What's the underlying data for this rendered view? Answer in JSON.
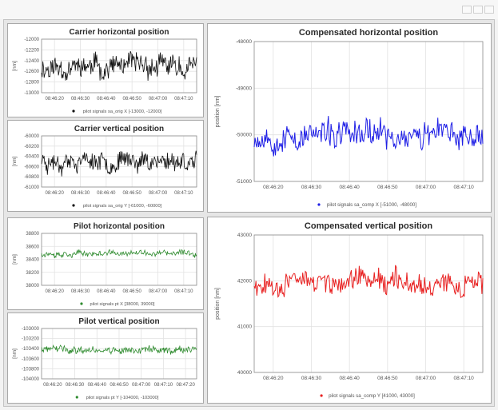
{
  "window": {
    "controls": [
      "minimize-icon",
      "maximize-icon",
      "close-icon"
    ]
  },
  "chart_data": [
    {
      "id": "carrier-horizontal",
      "type": "line",
      "title": "Carrier horizontal position",
      "ylabel": "[nm]",
      "yticks": [
        -12000,
        -12200,
        -12400,
        -12600,
        -12800,
        -13000
      ],
      "ylim": [
        -13000,
        -12000
      ],
      "xtick_labels": [
        "08:46:20",
        "08:46:30",
        "08:46:40",
        "08:46:50",
        "08:47:00",
        "08:47:10"
      ],
      "xlim": [
        0,
        60
      ],
      "series": [
        {
          "name": "pilot signals sa_orig X [-13000, -12000]",
          "color": "#111111",
          "mean": -12520,
          "amplitude": 420,
          "n": 240,
          "seed": 11
        }
      ],
      "legend": "bottom"
    },
    {
      "id": "carrier-vertical",
      "type": "line",
      "title": "Carrier vertical position",
      "ylabel": "[nm]",
      "yticks": [
        -60000,
        -60200,
        -60400,
        -60600,
        -60800,
        -61000
      ],
      "ylim": [
        -61000,
        -60000
      ],
      "xtick_labels": [
        "08:46:20",
        "08:46:30",
        "08:46:40",
        "08:46:50",
        "08:47:00",
        "08:47:10"
      ],
      "xlim": [
        0,
        60
      ],
      "series": [
        {
          "name": "pilot signals sa_orig Y [-61000, -60000]",
          "color": "#111111",
          "mean": -60480,
          "amplitude": 380,
          "n": 240,
          "seed": 23
        }
      ],
      "legend": "bottom"
    },
    {
      "id": "pilot-horizontal",
      "type": "line",
      "title": "Pilot horizontal position",
      "ylabel": "[nm]",
      "yticks": [
        38800,
        38600,
        38400,
        38200,
        38000
      ],
      "ylim": [
        38000,
        38800
      ],
      "xtick_labels": [
        "08:46:20",
        "08:46:30",
        "08:46:40",
        "08:46:50",
        "08:47:00",
        "08:47:10"
      ],
      "xlim": [
        0,
        60
      ],
      "series": [
        {
          "name": "pilot signals pt X [38000, 39000]",
          "color": "#2e8b2e",
          "mean": 38490,
          "amplitude": 90,
          "n": 240,
          "seed": 37
        }
      ],
      "legend": "bottom"
    },
    {
      "id": "pilot-vertical",
      "type": "line",
      "title": "Pilot vertical position",
      "ylabel": "[nm]",
      "yticks": [
        -103000,
        -103200,
        -103400,
        -103600,
        -103800,
        -104000
      ],
      "ylim": [
        -104000,
        -103000
      ],
      "xtick_labels": [
        "08:46:20",
        "08:46:30",
        "08:46:40",
        "08:46:50",
        "08:47:00",
        "08:47:10",
        "08:47:20"
      ],
      "xlim": [
        0,
        70
      ],
      "series": [
        {
          "name": "pilot signals pt Y [-104000, -103000]",
          "color": "#2e8b2e",
          "mean": -103420,
          "amplitude": 150,
          "n": 240,
          "seed": 41
        }
      ],
      "legend": "bottom"
    },
    {
      "id": "compensated-horizontal",
      "type": "line",
      "title": "Compensated horizontal position",
      "ylabel": "position [nm]",
      "yticks": [
        -48000,
        -49000,
        -50000,
        -51000
      ],
      "ylim": [
        -51000,
        -48000
      ],
      "xtick_labels": [
        "08:46:20",
        "08:46:30",
        "08:46:40",
        "08:46:50",
        "08:47:00",
        "08:47:10"
      ],
      "xlim": [
        0,
        60
      ],
      "series": [
        {
          "name": "pilot signals sa_comp X [-51000, -48000]",
          "color": "#1f1fe6",
          "mean": -50020,
          "amplitude": 600,
          "n": 260,
          "seed": 53
        }
      ],
      "legend": "bottom"
    },
    {
      "id": "compensated-vertical",
      "type": "line",
      "title": "Compensated vertical position",
      "ylabel": "position [nm]",
      "yticks": [
        43000,
        42000,
        41000,
        40000
      ],
      "ylim": [
        40000,
        43000
      ],
      "xtick_labels": [
        "08:46:20",
        "08:46:30",
        "08:46:40",
        "08:46:50",
        "08:47:00",
        "08:47:10"
      ],
      "xlim": [
        0,
        60
      ],
      "series": [
        {
          "name": "pilot signals sa_comp Y [41000, 43000]",
          "color": "#e82020",
          "mean": 41980,
          "amplitude": 520,
          "n": 260,
          "seed": 67
        }
      ],
      "legend": "bottom"
    }
  ]
}
